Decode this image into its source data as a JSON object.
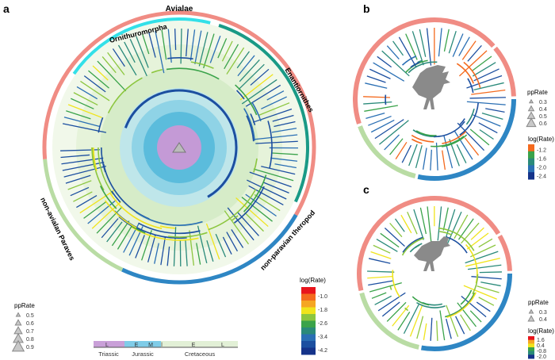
{
  "panels": {
    "a": {
      "letter": "a",
      "clades": [
        "Avialae",
        "Ornithuromorpha",
        "Enantiornithes",
        "non-avialan Paraves",
        "non-paravian theropod"
      ],
      "clade_colors": {
        "Avialae": "#f08c84",
        "Ornithuromorpha": "#33e0e8",
        "Enantiornithes": "#1a9a86",
        "non-avialan Paraves": "#b9dca4",
        "non-paravian theropod": "#2e86c4"
      },
      "pprate_legend": {
        "title": "ppRate",
        "values": [
          "0.5",
          "0.6",
          "0.7",
          "0.8",
          "0.9"
        ]
      },
      "rate_legend": {
        "title": "log(Rate)",
        "ticks": [
          "-1.0",
          "-1.8",
          "-2.6",
          "-3.4",
          "-4.2"
        ],
        "colors": [
          "#e8141c",
          "#f46a1e",
          "#f5a623",
          "#f0e41c",
          "#8cc63f",
          "#3aa34a",
          "#2a8a7a",
          "#2a6fb4",
          "#1c4fa0",
          "#15338a"
        ]
      },
      "timescale": {
        "periods": [
          "Triassic",
          "Jurassic",
          "Cretaceous"
        ],
        "epochs": [
          "L",
          "E",
          "M",
          "l",
          "E",
          "L"
        ],
        "period_colors": {
          "Triassic": "#c9a0d8",
          "Jurassic": "#7fcce8",
          "Cretaceous": "#e2f0d6"
        }
      }
    },
    "b": {
      "letter": "b",
      "pprate_legend": {
        "title": "ppRate",
        "values": [
          "0.3",
          "0.4",
          "0.5",
          "0.6"
        ]
      },
      "rate_legend": {
        "title": "log(Rate)",
        "ticks": [
          "-1.2",
          "-1.6",
          "-2.0",
          "-2.4"
        ],
        "colors": [
          "#f46a1e",
          "#3aa34a",
          "#2a8a7a",
          "#2a6fb4",
          "#15338a"
        ]
      }
    },
    "c": {
      "letter": "c",
      "pprate_legend": {
        "title": "ppRate",
        "values": [
          "0.3",
          "0.4"
        ]
      },
      "rate_legend": {
        "title": "log(Rate)",
        "ticks": [
          "1.6",
          "0.4",
          "-0.8",
          "-2.0"
        ],
        "colors": [
          "#e8141c",
          "#f5a623",
          "#f0e41c",
          "#3aa34a",
          "#2a8a7a",
          "#15338a"
        ]
      }
    }
  }
}
